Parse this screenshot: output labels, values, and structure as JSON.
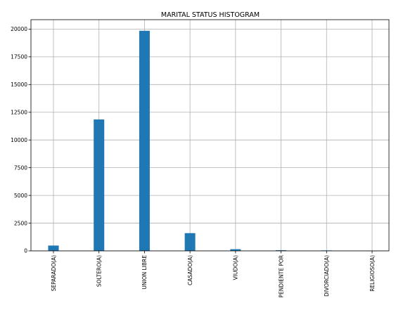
{
  "chart_data": {
    "type": "bar",
    "title": "MARITAL STATUS HISTOGRAM",
    "xlabel": "",
    "ylabel": "",
    "categories": [
      "SEPARADO(A)",
      "SOLTERO(A)",
      "UNION LIBRE",
      "CASADO(A)",
      "VIUDO(A)",
      "PENDIENTE POR",
      "DIVORCIADO(A)",
      "RELIGIOSO(A)"
    ],
    "values": [
      480,
      11850,
      19850,
      1600,
      150,
      60,
      40,
      10
    ],
    "ylim": [
      0,
      20850
    ],
    "yticks": [
      0,
      2500,
      5000,
      7500,
      10000,
      12500,
      15000,
      17500,
      20000
    ],
    "ytick_labels": [
      "0",
      "2500",
      "5000",
      "7500",
      "10000",
      "12500",
      "15000",
      "17500",
      "20000"
    ],
    "grid": true,
    "bar_color": "#1f77b4"
  }
}
